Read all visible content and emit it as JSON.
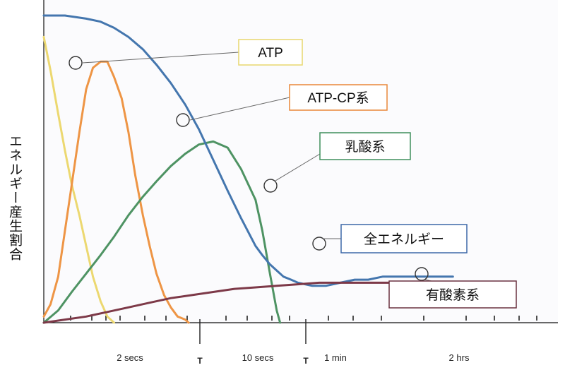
{
  "chart_data": {
    "type": "line",
    "ylabel": "エネルギー産生割合",
    "x_ticks": [
      "2 secs",
      "T",
      "10 secs",
      "T",
      "1 min",
      "2 hrs"
    ],
    "series": [
      {
        "name": "ATP",
        "color": "#ecd870",
        "x": [
          0.0,
          0.08,
          0.17,
          0.25,
          0.33,
          0.42,
          0.5,
          0.58,
          0.67,
          0.75,
          0.83
        ],
        "y": [
          0.93,
          0.82,
          0.68,
          0.56,
          0.45,
          0.35,
          0.25,
          0.15,
          0.07,
          0.02,
          0.0
        ]
      },
      {
        "name": "ATP-CP系",
        "color": "#ee9545",
        "x": [
          0.0,
          0.08,
          0.17,
          0.25,
          0.33,
          0.42,
          0.5,
          0.58,
          0.67,
          0.75,
          0.83,
          0.92,
          1.0,
          1.08,
          1.17,
          1.25,
          1.33,
          1.42,
          1.5,
          1.58,
          1.67,
          1.71
        ],
        "y": [
          0.02,
          0.06,
          0.15,
          0.3,
          0.45,
          0.62,
          0.76,
          0.83,
          0.85,
          0.85,
          0.8,
          0.73,
          0.62,
          0.48,
          0.35,
          0.25,
          0.16,
          0.09,
          0.05,
          0.02,
          0.01,
          0.0
        ]
      },
      {
        "name": "乳酸系",
        "color": "#4e9363",
        "x": [
          0.0,
          0.17,
          0.33,
          0.5,
          0.67,
          0.83,
          1.0,
          1.17,
          1.33,
          1.5,
          1.67,
          1.83,
          2.0,
          2.17,
          2.33,
          2.5,
          2.58,
          2.67,
          2.75,
          2.79
        ],
        "y": [
          0.0,
          0.04,
          0.1,
          0.16,
          0.22,
          0.28,
          0.35,
          0.41,
          0.46,
          0.51,
          0.55,
          0.58,
          0.59,
          0.57,
          0.5,
          0.4,
          0.3,
          0.16,
          0.04,
          0.0
        ]
      },
      {
        "name": "全エネルギー",
        "color": "#4476ae",
        "x": [
          0.0,
          0.25,
          0.5,
          0.67,
          0.83,
          1.0,
          1.17,
          1.33,
          1.5,
          1.67,
          1.83,
          2.0,
          2.17,
          2.33,
          2.5,
          2.58,
          2.67,
          2.75,
          2.83,
          2.92,
          3.0,
          3.17,
          3.33,
          3.5,
          3.67,
          3.83,
          4.0,
          4.17,
          4.33,
          4.5,
          4.67,
          4.83
        ],
        "y": [
          1.0,
          1.0,
          0.99,
          0.98,
          0.96,
          0.93,
          0.89,
          0.84,
          0.78,
          0.71,
          0.63,
          0.53,
          0.43,
          0.34,
          0.25,
          0.22,
          0.19,
          0.17,
          0.15,
          0.14,
          0.13,
          0.12,
          0.12,
          0.13,
          0.14,
          0.14,
          0.15,
          0.15,
          0.15,
          0.15,
          0.15,
          0.15
        ]
      },
      {
        "name": "有酸素系",
        "color": "#7d3948",
        "x": [
          0.0,
          0.25,
          0.5,
          0.75,
          1.0,
          1.25,
          1.5,
          1.75,
          2.0,
          2.25,
          2.5,
          2.75,
          3.0,
          3.25,
          3.5,
          3.75,
          4.0,
          4.25,
          4.5,
          4.67,
          4.83
        ],
        "y": [
          0.0,
          0.01,
          0.02,
          0.035,
          0.05,
          0.065,
          0.08,
          0.09,
          0.1,
          0.11,
          0.115,
          0.12,
          0.125,
          0.13,
          0.13,
          0.13,
          0.13,
          0.13,
          0.13,
          0.13,
          0.13
        ]
      }
    ]
  }
}
